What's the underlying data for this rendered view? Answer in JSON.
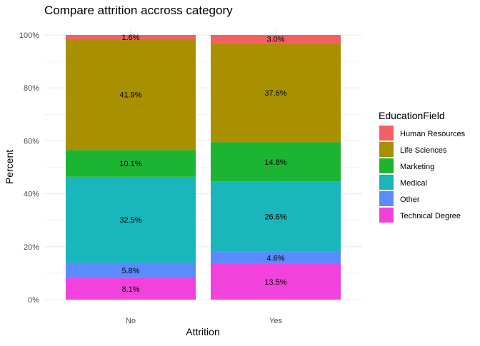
{
  "chart_data": {
    "type": "bar",
    "stacked": true,
    "percent": true,
    "title": "Compare attrition accross category",
    "xlabel": "Attrition",
    "ylabel": "Percent",
    "categories": [
      "No",
      "Yes"
    ],
    "yticks": [
      "0%",
      "20%",
      "40%",
      "60%",
      "80%",
      "100%"
    ],
    "ylim": [
      0,
      100
    ],
    "grid": true,
    "legend_title": "EducationField",
    "legend_position": "right",
    "series": [
      {
        "name": "Technical Degree",
        "color": "#F142DC",
        "values": [
          8.1,
          13.5
        ],
        "labels": [
          "8.1%",
          "13.5%"
        ]
      },
      {
        "name": "Other",
        "color": "#5B8CFF",
        "values": [
          5.8,
          4.6
        ],
        "labels": [
          "5.8%",
          "4.6%"
        ]
      },
      {
        "name": "Medical",
        "color": "#19B6BC",
        "values": [
          32.5,
          26.6
        ],
        "labels": [
          "32.5%",
          "26.6%"
        ]
      },
      {
        "name": "Marketing",
        "color": "#1CB532",
        "values": [
          10.1,
          14.8
        ],
        "labels": [
          "10.1%",
          "14.8%"
        ]
      },
      {
        "name": "Life Sciences",
        "color": "#A99000",
        "values": [
          41.9,
          37.6
        ],
        "labels": [
          "41.9%",
          "37.6%"
        ]
      },
      {
        "name": "Human Resources",
        "color": "#F45F63",
        "values": [
          1.6,
          3.0
        ],
        "labels": [
          "1.6%",
          "3.0%"
        ]
      }
    ],
    "legend_order": [
      "Human Resources",
      "Life Sciences",
      "Marketing",
      "Medical",
      "Other",
      "Technical Degree"
    ]
  }
}
